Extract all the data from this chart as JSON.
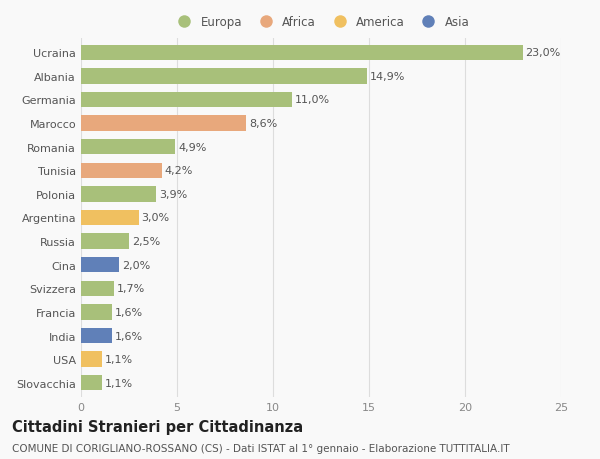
{
  "countries": [
    "Ucraina",
    "Albania",
    "Germania",
    "Marocco",
    "Romania",
    "Tunisia",
    "Polonia",
    "Argentina",
    "Russia",
    "Cina",
    "Svizzera",
    "Francia",
    "India",
    "USA",
    "Slovacchia"
  ],
  "values": [
    23.0,
    14.9,
    11.0,
    8.6,
    4.9,
    4.2,
    3.9,
    3.0,
    2.5,
    2.0,
    1.7,
    1.6,
    1.6,
    1.1,
    1.1
  ],
  "continents": [
    "Europa",
    "Europa",
    "Europa",
    "Africa",
    "Europa",
    "Africa",
    "Europa",
    "America",
    "Europa",
    "Asia",
    "Europa",
    "Europa",
    "Asia",
    "America",
    "Europa"
  ],
  "colors": {
    "Europa": "#a8c07a",
    "Africa": "#e8a87c",
    "America": "#f0c060",
    "Asia": "#6080b8"
  },
  "xlim": [
    0,
    25
  ],
  "xticks": [
    0,
    5,
    10,
    15,
    20,
    25
  ],
  "title": "Cittadini Stranieri per Cittadinanza",
  "subtitle": "COMUNE DI CORIGLIANO-ROSSANO (CS) - Dati ISTAT al 1° gennaio - Elaborazione TUTTITALIA.IT",
  "background_color": "#f9f9f9",
  "grid_color": "#dddddd",
  "bar_height": 0.65,
  "label_fontsize": 8.0,
  "tick_fontsize": 8.0,
  "title_fontsize": 10.5,
  "subtitle_fontsize": 7.5,
  "legend_order": [
    "Europa",
    "Africa",
    "America",
    "Asia"
  ]
}
